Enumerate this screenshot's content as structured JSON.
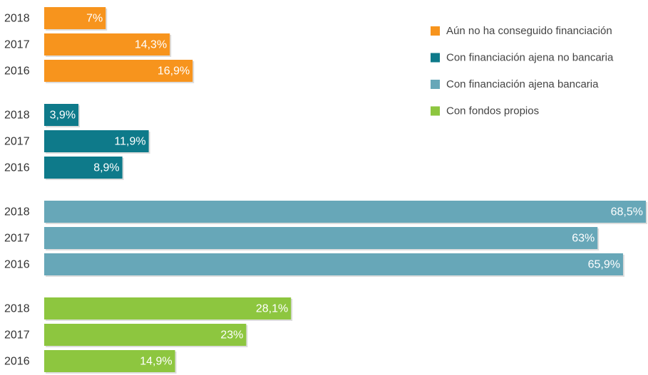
{
  "chart_data": {
    "type": "bar",
    "orientation": "horizontal",
    "categories": [
      "2018",
      "2017",
      "2016"
    ],
    "series": [
      {
        "name": "Aún no ha conseguido financiación",
        "color": "#f7941d",
        "values": [
          7,
          14.3,
          16.9
        ],
        "value_labels": [
          "7%",
          "14,3%",
          "16,9%"
        ]
      },
      {
        "name": "Con financiación ajena no bancaria",
        "color": "#0e7a8a",
        "values": [
          3.9,
          11.9,
          8.9
        ],
        "value_labels": [
          "3,9%",
          "11,9%",
          "8,9%"
        ]
      },
      {
        "name": "Con financiación ajena bancaria",
        "color": "#67a7b8",
        "values": [
          68.5,
          63,
          65.9
        ],
        "value_labels": [
          "68,5%",
          "63%",
          "65,9%"
        ]
      },
      {
        "name": "Con fondos propios",
        "color": "#8dc63f",
        "values": [
          28.1,
          23,
          14.9
        ],
        "value_labels": [
          "28,1%",
          "23%",
          "14,9%"
        ]
      }
    ]
  }
}
